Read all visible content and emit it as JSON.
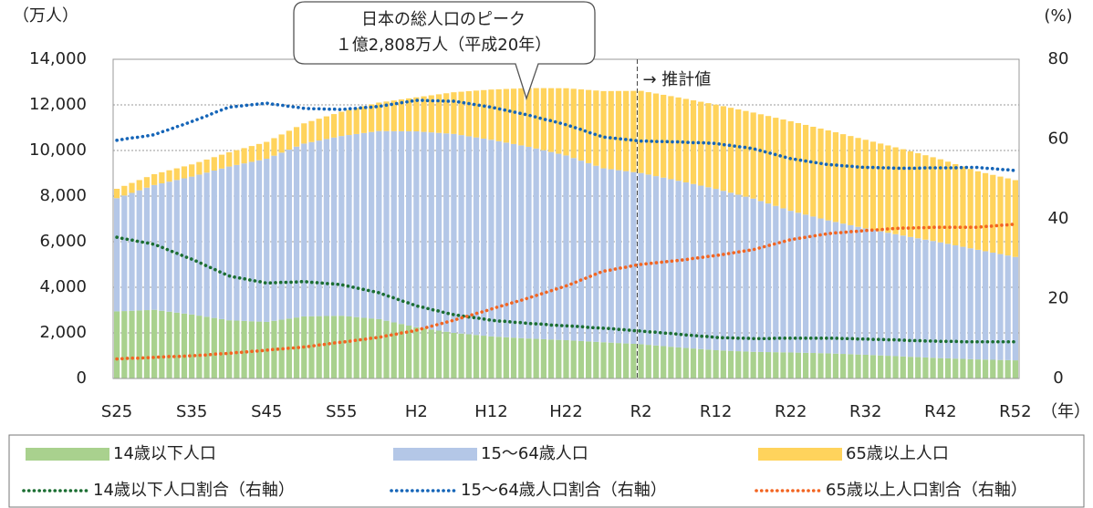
{
  "chart_data": {
    "type": "bar",
    "stacked": true,
    "y_unit": "（万人）",
    "y2_unit": "(%)",
    "x_unit": "（年）",
    "callout": [
      "日本の総人口のピーク",
      "１億2,808万人（平成20年）"
    ],
    "annotations": [
      {
        "text": "→ 推計値",
        "x": "R2"
      }
    ],
    "grid": true,
    "ylim": [
      0,
      14000
    ],
    "yticks": [
      0,
      {
        "value": 2000,
        "label": "2,000"
      },
      {
        "value": 4000,
        "label": "4,000"
      },
      {
        "value": 6000,
        "label": "6,000"
      },
      {
        "value": 8000,
        "label": "8,000"
      },
      {
        "value": 10000,
        "label": "10,000"
      },
      {
        "value": 12000,
        "label": "12,000"
      },
      {
        "value": 14000,
        "label": "14,000"
      }
    ],
    "y2lim": [
      0,
      80
    ],
    "y2ticks": [
      0,
      20,
      40,
      60,
      80
    ],
    "categories": [
      "S25",
      null,
      null,
      null,
      null,
      null,
      null,
      null,
      null,
      null,
      "S35",
      null,
      null,
      null,
      null,
      null,
      null,
      null,
      null,
      null,
      "S45",
      null,
      null,
      null,
      null,
      null,
      null,
      null,
      null,
      null,
      "S55",
      null,
      null,
      null,
      null,
      null,
      null,
      null,
      null,
      null,
      "H2",
      null,
      null,
      null,
      null,
      null,
      null,
      null,
      null,
      null,
      "H12",
      null,
      null,
      null,
      null,
      null,
      null,
      null,
      null,
      null,
      "H22",
      null,
      null,
      null,
      null,
      null,
      null,
      null,
      null,
      null,
      "R2",
      null,
      null,
      null,
      null,
      null,
      null,
      null,
      null,
      null,
      "R12",
      null,
      null,
      null,
      null,
      null,
      null,
      null,
      null,
      null,
      "R22",
      null,
      null,
      null,
      null,
      null,
      null,
      null,
      null,
      null,
      "R32",
      null,
      null,
      null,
      null,
      null,
      null,
      null,
      null,
      null,
      "R42",
      null,
      null,
      null,
      null,
      null,
      null,
      null,
      null,
      null,
      "R52"
    ],
    "series": [
      {
        "name": "14歳以下人口",
        "type": "bar",
        "color": "#a9d18e",
        "values": [
          2943,
          2957,
          2971,
          2984,
          2998,
          3012,
          2971,
          2930,
          2889,
          2848,
          2807,
          2756,
          2705,
          2655,
          2604,
          2553,
          2539,
          2525,
          2510,
          2496,
          2482,
          2530,
          2578,
          2626,
          2674,
          2722,
          2728,
          2734,
          2740,
          2745,
          2751,
          2721,
          2692,
          2662,
          2633,
          2603,
          2532,
          2461,
          2391,
          2320,
          2249,
          2199,
          2150,
          2100,
          2051,
          2001,
          1970,
          1939,
          1909,
          1878,
          1847,
          1828,
          1809,
          1790,
          1771,
          1752,
          1738,
          1723,
          1709,
          1694,
          1680,
          1662,
          1644,
          1625,
          1607,
          1589,
          1572,
          1555,
          1537,
          1520,
          1503,
          1475,
          1447,
          1419,
          1391,
          1363,
          1338,
          1314,
          1289,
          1265,
          1240,
          1226,
          1212,
          1197,
          1183,
          1169,
          1164,
          1158,
          1153,
          1147,
          1142,
          1134,
          1126,
          1119,
          1111,
          1103,
          1091,
          1078,
          1066,
          1053,
          1041,
          1026,
          1011,
          996,
          981,
          966,
          951,
          937,
          922,
          908,
          893,
          882,
          870,
          859,
          847,
          836,
          828,
          820,
          813,
          805,
          797
        ]
      },
      {
        "name": "15～64歳人口",
        "type": "bar",
        "color": "#b4c7e7",
        "values": [
          4966,
          5067,
          5169,
          5270,
          5372,
          5473,
          5588,
          5703,
          5817,
          5932,
          6047,
          6186,
          6326,
          6465,
          6605,
          6744,
          6827,
          6909,
          6992,
          7074,
          7157,
          7242,
          7327,
          7411,
          7496,
          7581,
          7642,
          7702,
          7763,
          7823,
          7884,
          7957,
          8031,
          8104,
          8178,
          8251,
          8319,
          8387,
          8454,
          8522,
          8590,
          8617,
          8644,
          8672,
          8699,
          8726,
          8705,
          8684,
          8664,
          8643,
          8622,
          8579,
          8537,
          8494,
          8452,
          8409,
          8348,
          8287,
          8225,
          8164,
          8103,
          8008,
          7913,
          7819,
          7724,
          7629,
          7605,
          7581,
          7557,
          7533,
          7509,
          7469,
          7429,
          7390,
          7350,
          7310,
          7263,
          7216,
          7170,
          7123,
          7076,
          7005,
          6934,
          6864,
          6793,
          6722,
          6620,
          6519,
          6417,
          6315,
          6213,
          6137,
          6061,
          5984,
          5908,
          5832,
          5774,
          5715,
          5657,
          5598,
          5540,
          5492,
          5445,
          5397,
          5350,
          5302,
          5257,
          5212,
          5168,
          5123,
          5078,
          5024,
          4970,
          4917,
          4863,
          4809,
          4754,
          4699,
          4645,
          4590,
          4535
        ]
      },
      {
        "name": "65歳以上人口",
        "type": "bar",
        "color": "#ffd35c",
        "values": [
          411,
          424,
          437,
          449,
          462,
          475,
          487,
          499,
          511,
          523,
          535,
          553,
          571,
          588,
          606,
          624,
          647,
          670,
          693,
          716,
          739,
          769,
          798,
          828,
          857,
          887,
          923,
          958,
          994,
          1029,
          1065,
          1101,
          1138,
          1174,
          1211,
          1247,
          1296,
          1345,
          1395,
          1444,
          1493,
          1560,
          1626,
          1693,
          1759,
          1826,
          1902,
          1977,
          2053,
          2128,
          2204,
          2278,
          2353,
          2427,
          2502,
          2576,
          2650,
          2725,
          2799,
          2874,
          2948,
          3036,
          3124,
          3211,
          3299,
          3387,
          3430,
          3474,
          3517,
          3560,
          3603,
          3613,
          3623,
          3633,
          3643,
          3653,
          3662,
          3670,
          3679,
          3687,
          3696,
          3711,
          3727,
          3742,
          3758,
          3773,
          3804,
          3835,
          3866,
          3897,
          3928,
          3931,
          3935,
          3938,
          3942,
          3945,
          3934,
          3922,
          3911,
          3899,
          3888,
          3868,
          3848,
          3828,
          3808,
          3788,
          3759,
          3730,
          3702,
          3673,
          3644,
          3603,
          3563,
          3522,
          3482,
          3441,
          3426,
          3411,
          3397,
          3382,
          3367
        ]
      },
      {
        "name": "14歳以下人口割合（右軸）",
        "type": "line",
        "axis": "y2",
        "color": "#1b6e32",
        "values": [
          35.4,
          35.0,
          34.7,
          34.3,
          34.0,
          33.6,
          32.9,
          32.1,
          31.4,
          30.6,
          29.9,
          29.1,
          28.2,
          27.4,
          26.5,
          25.7,
          25.3,
          25.0,
          24.6,
          24.3,
          23.9,
          24.0,
          24.1,
          24.1,
          24.2,
          24.3,
          24.1,
          24.0,
          23.8,
          23.7,
          23.5,
          23.1,
          22.7,
          22.3,
          21.9,
          21.5,
          20.8,
          20.2,
          19.5,
          18.9,
          18.2,
          17.8,
          17.3,
          16.9,
          16.4,
          16.0,
          15.7,
          15.4,
          15.2,
          14.9,
          14.6,
          14.4,
          14.3,
          14.1,
          14.0,
          13.8,
          13.7,
          13.6,
          13.4,
          13.3,
          13.2,
          13.1,
          13.0,
          12.8,
          12.7,
          12.6,
          12.5,
          12.3,
          12.2,
          12.0,
          11.9,
          11.7,
          11.6,
          11.4,
          11.3,
          11.1,
          10.9,
          10.8,
          10.6,
          10.5,
          10.3,
          10.2,
          10.2,
          10.1,
          10.1,
          10.0,
          10.0,
          10.0,
          10.1,
          10.1,
          10.1,
          10.1,
          10.1,
          10.1,
          10.1,
          10.1,
          10.1,
          10.0,
          10.0,
          9.9,
          9.9,
          9.8,
          9.8,
          9.7,
          9.7,
          9.6,
          9.5,
          9.5,
          9.4,
          9.4,
          9.3,
          9.3,
          9.3,
          9.2,
          9.2,
          9.2,
          9.2,
          9.2,
          9.2,
          9.2,
          9.2
        ]
      },
      {
        "name": "15～64歳人口割合（右軸）",
        "type": "line",
        "axis": "y2",
        "color": "#1565b8",
        "values": [
          59.7,
          60.0,
          60.3,
          60.5,
          60.8,
          61.1,
          61.8,
          62.4,
          63.1,
          63.7,
          64.4,
          65.1,
          65.8,
          66.6,
          67.3,
          68.0,
          68.2,
          68.4,
          68.6,
          68.8,
          69.0,
          68.7,
          68.5,
          68.2,
          68.0,
          67.7,
          67.6,
          67.6,
          67.5,
          67.5,
          67.4,
          67.6,
          67.7,
          67.9,
          68.0,
          68.2,
          68.5,
          68.8,
          69.1,
          69.4,
          69.7,
          69.7,
          69.6,
          69.6,
          69.5,
          69.5,
          69.2,
          68.9,
          68.6,
          68.3,
          68.0,
          67.6,
          67.2,
          66.8,
          66.4,
          66.0,
          65.5,
          65.0,
          64.6,
          64.1,
          63.6,
          63.0,
          62.4,
          61.7,
          61.1,
          60.5,
          60.3,
          60.1,
          59.9,
          59.7,
          59.5,
          59.5,
          59.4,
          59.4,
          59.3,
          59.3,
          59.2,
          59.1,
          59.1,
          59.0,
          58.9,
          58.6,
          58.4,
          58.1,
          57.9,
          57.6,
          57.1,
          56.6,
          56.1,
          55.6,
          55.1,
          54.8,
          54.5,
          54.2,
          53.9,
          53.6,
          53.5,
          53.3,
          53.2,
          53.0,
          52.9,
          52.9,
          52.8,
          52.8,
          52.7,
          52.7,
          52.7,
          52.7,
          52.8,
          52.8,
          52.8,
          52.8,
          52.8,
          52.9,
          52.9,
          52.9,
          52.7,
          52.6,
          52.4,
          52.3,
          52.1
        ]
      },
      {
        "name": "65歳以上人口割合（右軸）",
        "type": "line",
        "axis": "y2",
        "color": "#f26522",
        "values": [
          4.9,
          5.0,
          5.1,
          5.1,
          5.2,
          5.3,
          5.4,
          5.5,
          5.5,
          5.6,
          5.7,
          5.8,
          5.9,
          6.1,
          6.2,
          6.3,
          6.5,
          6.6,
          6.8,
          6.9,
          7.1,
          7.3,
          7.4,
          7.6,
          7.7,
          7.9,
          8.1,
          8.4,
          8.6,
          8.9,
          9.1,
          9.3,
          9.6,
          9.8,
          10.1,
          10.3,
          10.7,
          11.0,
          11.4,
          11.7,
          12.1,
          12.6,
          13.1,
          13.6,
          14.1,
          14.6,
          15.2,
          15.7,
          16.3,
          16.8,
          17.4,
          18.0,
          18.5,
          19.1,
          19.6,
          20.2,
          20.8,
          21.4,
          22.0,
          22.6,
          23.2,
          23.9,
          24.7,
          25.4,
          26.2,
          26.9,
          27.2,
          27.6,
          27.9,
          28.3,
          28.6,
          28.8,
          29.0,
          29.2,
          29.4,
          29.6,
          29.8,
          30.1,
          30.3,
          30.6,
          30.8,
          31.1,
          31.4,
          31.7,
          32.0,
          32.3,
          32.8,
          33.3,
          33.8,
          34.3,
          34.8,
          35.1,
          35.4,
          35.7,
          36.0,
          36.3,
          36.5,
          36.6,
          36.8,
          36.9,
          37.1,
          37.2,
          37.3,
          37.5,
          37.6,
          37.7,
          37.7,
          37.8,
          37.8,
          37.9,
          37.9,
          37.9,
          37.9,
          37.9,
          37.9,
          37.9,
          38.1,
          38.2,
          38.4,
          38.5,
          38.7
        ]
      }
    ]
  }
}
